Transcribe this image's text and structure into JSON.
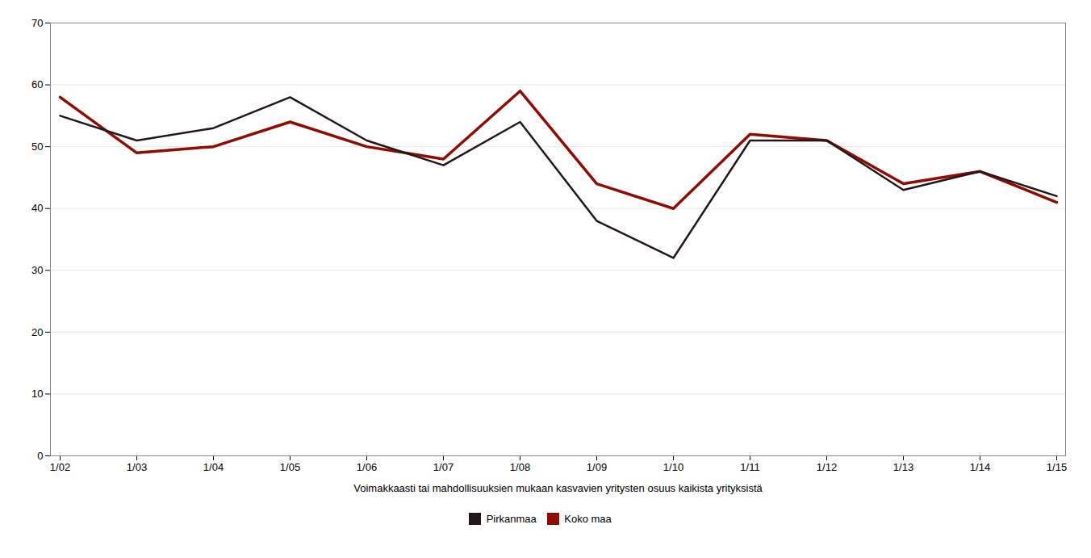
{
  "chart_data": {
    "type": "line",
    "xlabel": "Voimakkaasti tai mahdollisuuksien mukaan kasvavien yritysten osuus kaikista yrityksistä",
    "categories": [
      "1/02",
      "1/03",
      "1/04",
      "1/05",
      "1/06",
      "1/07",
      "1/08",
      "1/09",
      "1/10",
      "1/11",
      "1/12",
      "1/13",
      "1/14",
      "1/15"
    ],
    "series": [
      {
        "name": "Pirkanmaa",
        "values": [
          55,
          51,
          53,
          58,
          51,
          47,
          54,
          38,
          32,
          51,
          51,
          43,
          46,
          42
        ]
      },
      {
        "name": "Koko maa",
        "values": [
          58,
          49,
          50,
          54,
          50,
          48,
          59,
          44,
          40,
          52,
          51,
          44,
          46,
          41
        ]
      }
    ],
    "ylim": [
      0,
      70
    ],
    "yticks": [
      0,
      10,
      20,
      30,
      40,
      50,
      60,
      70
    ],
    "grid": true,
    "legend": "bottom"
  }
}
